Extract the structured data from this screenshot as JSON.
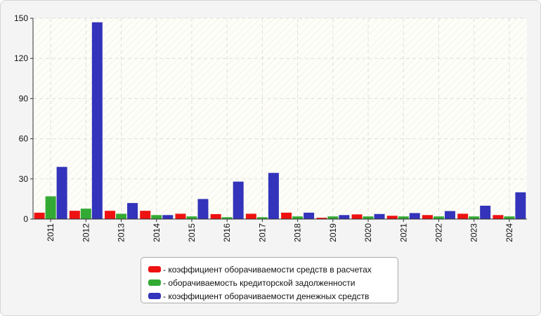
{
  "chart_data": {
    "type": "bar",
    "categories": [
      "2011",
      "2012",
      "2013",
      "2014",
      "2015",
      "2016",
      "2017",
      "2018",
      "2019",
      "2020",
      "2021",
      "2022",
      "2023",
      "2024"
    ],
    "series": [
      {
        "name": "- коэффициент оборачиваемости средств в расчетах",
        "color": "#ee1111",
        "values": [
          4.8,
          6.2,
          6.2,
          6.2,
          4.0,
          3.7,
          4.0,
          4.8,
          1.0,
          3.5,
          2.5,
          3.0,
          4.0,
          3.0
        ]
      },
      {
        "name": "- оборачиваемость кредиторской задолженности",
        "color": "#33aa33",
        "values": [
          17.0,
          7.8,
          4.0,
          3.0,
          2.0,
          1.4,
          1.4,
          2.0,
          2.0,
          2.0,
          2.0,
          2.0,
          2.0,
          2.0
        ]
      },
      {
        "name": "- коэффициент оборачиваемости денежных средств",
        "color": "#3333bb",
        "values": [
          39.0,
          147.0,
          12.0,
          3.0,
          15.0,
          28.0,
          34.5,
          4.8,
          3.0,
          3.8,
          4.5,
          6.0,
          10.0,
          20.0
        ]
      }
    ],
    "yticks": [
      "0",
      "30",
      "60",
      "90",
      "120",
      "150"
    ],
    "ylim": [
      0,
      150
    ],
    "grid": true,
    "legend_position": "bottom-center"
  }
}
